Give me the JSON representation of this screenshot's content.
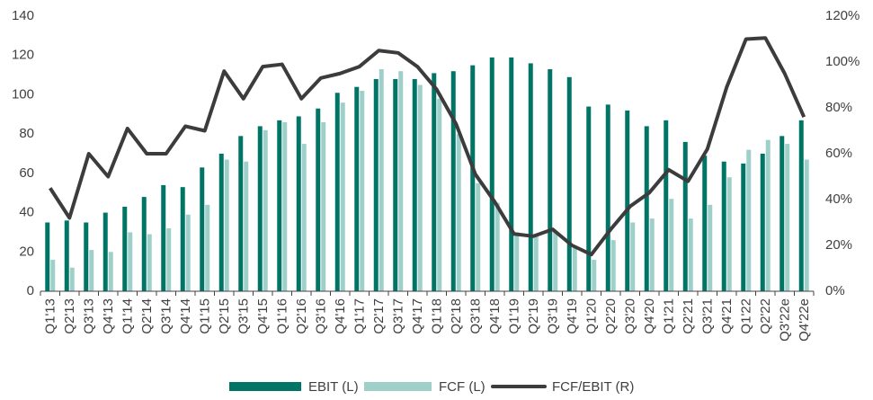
{
  "chart_data": {
    "type": "bar_line",
    "categories": [
      "Q1'13",
      "Q2'13",
      "Q3'13",
      "Q4'13",
      "Q1'14",
      "Q2'14",
      "Q3'14",
      "Q4'14",
      "Q1'15",
      "Q2'15",
      "Q3'15",
      "Q4'15",
      "Q1'16",
      "Q2'16",
      "Q3'16",
      "Q4'16",
      "Q1'17",
      "Q2'17",
      "Q3'17",
      "Q4'17",
      "Q1'18",
      "Q2'18",
      "Q3'18",
      "Q4'18",
      "Q1'19",
      "Q2'19",
      "Q3'19",
      "Q4'19",
      "Q1'20",
      "Q2'20",
      "Q3'20",
      "Q4'20",
      "Q1'21",
      "Q2'21",
      "Q3'21",
      "Q4'21",
      "Q1'22",
      "Q2'22",
      "Q3'22e",
      "Q4'22e"
    ],
    "series": [
      {
        "name": "EBIT (L)",
        "color": "#007566",
        "type": "bar",
        "values": [
          35,
          36,
          35,
          40,
          43,
          48,
          54,
          53,
          63,
          70,
          79,
          84,
          87,
          89,
          93,
          101,
          104,
          108,
          108,
          108,
          111,
          112,
          115,
          119,
          119,
          116,
          113,
          109,
          94,
          95,
          92,
          84,
          87,
          76,
          69,
          66,
          65,
          70,
          79,
          87
        ]
      },
      {
        "name": "FCF (L)",
        "color": "#9fcfc9",
        "type": "bar",
        "values": [
          16,
          12,
          21,
          20,
          30,
          29,
          32,
          39,
          44,
          67,
          66,
          82,
          86,
          75,
          86,
          96,
          102,
          113,
          112,
          105,
          98,
          80,
          55,
          45,
          30,
          28,
          30,
          22,
          16,
          26,
          35,
          37,
          47,
          37,
          44,
          58,
          72,
          77,
          75,
          67
        ]
      },
      {
        "name": "FCF/EBIT (R)",
        "color": "#3c3c3c",
        "type": "line",
        "axis": "y2",
        "values": [
          45,
          32,
          60,
          50,
          71,
          60,
          60,
          72,
          70,
          96,
          84,
          98,
          99,
          84,
          93,
          95,
          98,
          105,
          104,
          98,
          88,
          73,
          51,
          39,
          25,
          24,
          27,
          20,
          16,
          27,
          37,
          43,
          53,
          48,
          62,
          89,
          110,
          110.5,
          95,
          76
        ]
      }
    ],
    "ylim": [
      0,
      140
    ],
    "yticks": [
      0,
      20,
      40,
      60,
      80,
      100,
      120,
      140
    ],
    "y2lim": [
      0,
      120
    ],
    "y2ticks": [
      {
        "value": 0,
        "label": "0%"
      },
      {
        "value": 20,
        "label": "20%"
      },
      {
        "value": 40,
        "label": "40%"
      },
      {
        "value": 60,
        "label": "60%"
      },
      {
        "value": 80,
        "label": "80%"
      },
      {
        "value": 100,
        "label": "100%"
      },
      {
        "value": 120,
        "label": "120%"
      }
    ],
    "grid": false,
    "legend": "bottom"
  }
}
